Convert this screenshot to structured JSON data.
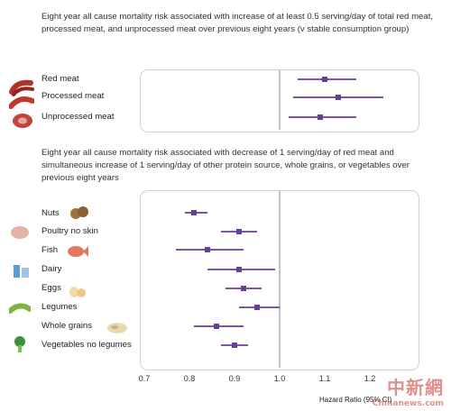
{
  "chart_data": [
    {
      "type": "forest",
      "title": "Eight year all cause mortality risk associated with increase of at least 0.5 serving/day of total red meat, processed meat, and unprocessed meat over previous eight years (v stable consumption group)",
      "categories": [
        "Red meat",
        "Processed meat",
        "Unprocessed meat"
      ],
      "series": [
        {
          "estimate": [
            1.1,
            1.13,
            1.09
          ],
          "ci_low": [
            1.04,
            1.03,
            1.02
          ],
          "ci_high": [
            1.17,
            1.23,
            1.17
          ]
        }
      ],
      "xlim": [
        0.7,
        1.3
      ],
      "reference_line": 1.0,
      "marker_color": "#6a3d9a"
    },
    {
      "type": "forest",
      "title": "Eight year all cause mortality risk associated with decrease of 1 serving/day of red meat and simultaneous increase of 1 serving/day of other protein source, whole grains, or vegetables over previous eight years",
      "categories": [
        "Nuts",
        "Poultry no skin",
        "Fish",
        "Dairy",
        "Eggs",
        "Legumes",
        "Whole grains",
        "Vegetables no legumes"
      ],
      "series": [
        {
          "estimate": [
            0.81,
            0.91,
            0.84,
            0.91,
            0.92,
            0.95,
            0.86,
            0.9
          ],
          "ci_low": [
            0.79,
            0.87,
            0.77,
            0.84,
            0.88,
            0.91,
            0.81,
            0.87
          ],
          "ci_high": [
            0.84,
            0.95,
            0.92,
            0.99,
            0.96,
            1.0,
            0.92,
            0.93
          ]
        }
      ],
      "xlim": [
        0.7,
        1.3
      ],
      "xticks": [
        0.7,
        0.8,
        0.9,
        1.0,
        1.1,
        1.2
      ],
      "xlabel": "Hazard Ratio (95% CI)",
      "reference_line": 1.0,
      "marker_color": "#6a3d9a"
    }
  ],
  "icons": {
    "top": [
      "sausage-icon",
      "sausage-icon",
      "steak-icon"
    ],
    "bottom": [
      "walnut-icon",
      "chicken-icon",
      "fish-icon",
      "milk-icon",
      "eggs-icon",
      "peas-icon",
      "grain-icon",
      "broccoli-icon"
    ]
  },
  "watermark": {
    "main": "中新網",
    "sub": "Chinanews.com"
  }
}
